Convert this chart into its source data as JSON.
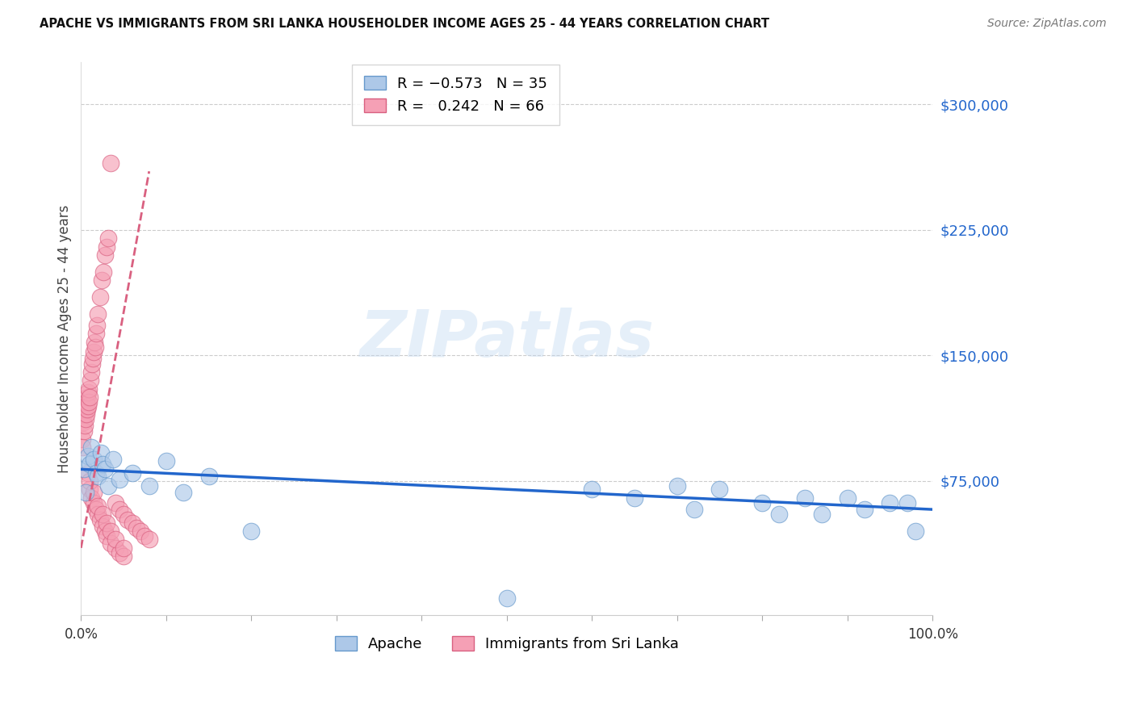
{
  "title": "APACHE VS IMMIGRANTS FROM SRI LANKA HOUSEHOLDER INCOME AGES 25 - 44 YEARS CORRELATION CHART",
  "source": "Source: ZipAtlas.com",
  "ylabel": "Householder Income Ages 25 - 44 years",
  "watermark_text": "ZIPatlas",
  "xlim": [
    0.0,
    100.0
  ],
  "ylim": [
    -5000,
    325000
  ],
  "ytick_positions": [
    75000,
    150000,
    225000,
    300000
  ],
  "ytick_labels": [
    "$75,000",
    "$150,000",
    "$225,000",
    "$300,000"
  ],
  "apache_color": "#adc8e8",
  "apache_edge_color": "#6699cc",
  "sri_lanka_color": "#f5a0b5",
  "sri_lanka_edge_color": "#d96080",
  "trend_blue_color": "#2266cc",
  "trend_pink_color": "#d96080",
  "R_apache": -0.573,
  "N_apache": 35,
  "R_sri_lanka": 0.242,
  "N_sri_lanka": 66,
  "apache_x": [
    0.3,
    0.5,
    0.8,
    1.0,
    1.2,
    1.5,
    1.8,
    2.0,
    2.3,
    2.5,
    2.8,
    3.2,
    3.8,
    4.5,
    6.0,
    8.0,
    10.0,
    12.0,
    15.0,
    20.0,
    50.0,
    60.0,
    65.0,
    70.0,
    72.0,
    75.0,
    80.0,
    82.0,
    85.0,
    87.0,
    90.0,
    92.0,
    95.0,
    97.0,
    98.0
  ],
  "apache_y": [
    82000,
    68000,
    90000,
    85000,
    95000,
    88000,
    80000,
    78000,
    92000,
    85000,
    82000,
    72000,
    88000,
    76000,
    80000,
    72000,
    87000,
    68000,
    78000,
    45000,
    5000,
    70000,
    65000,
    72000,
    58000,
    70000,
    62000,
    55000,
    65000,
    55000,
    65000,
    58000,
    62000,
    62000,
    45000
  ],
  "sri_lanka_x": [
    0.15,
    0.2,
    0.25,
    0.3,
    0.35,
    0.4,
    0.45,
    0.5,
    0.55,
    0.6,
    0.65,
    0.7,
    0.75,
    0.8,
    0.85,
    0.9,
    0.95,
    1.0,
    1.1,
    1.2,
    1.3,
    1.4,
    1.5,
    1.6,
    1.7,
    1.8,
    1.9,
    2.0,
    2.2,
    2.4,
    2.6,
    2.8,
    3.0,
    3.2,
    3.5,
    4.0,
    4.5,
    5.0,
    5.5,
    6.0,
    6.5,
    7.0,
    7.5,
    8.0,
    1.0,
    1.2,
    1.5,
    1.8,
    2.0,
    2.2,
    2.5,
    2.8,
    3.0,
    3.5,
    4.0,
    4.5,
    5.0,
    0.8,
    1.0,
    1.5,
    2.0,
    2.5,
    3.0,
    3.5,
    4.0,
    5.0
  ],
  "sri_lanka_y": [
    100000,
    95000,
    110000,
    105000,
    115000,
    108000,
    118000,
    112000,
    120000,
    115000,
    122000,
    118000,
    125000,
    120000,
    128000,
    122000,
    130000,
    125000,
    135000,
    140000,
    145000,
    148000,
    152000,
    158000,
    155000,
    163000,
    168000,
    175000,
    185000,
    195000,
    200000,
    210000,
    215000,
    220000,
    265000,
    62000,
    58000,
    55000,
    52000,
    50000,
    47000,
    45000,
    42000,
    40000,
    70000,
    65000,
    62000,
    58000,
    55000,
    52000,
    48000,
    45000,
    42000,
    38000,
    35000,
    32000,
    30000,
    80000,
    75000,
    68000,
    60000,
    55000,
    50000,
    45000,
    40000,
    35000
  ]
}
